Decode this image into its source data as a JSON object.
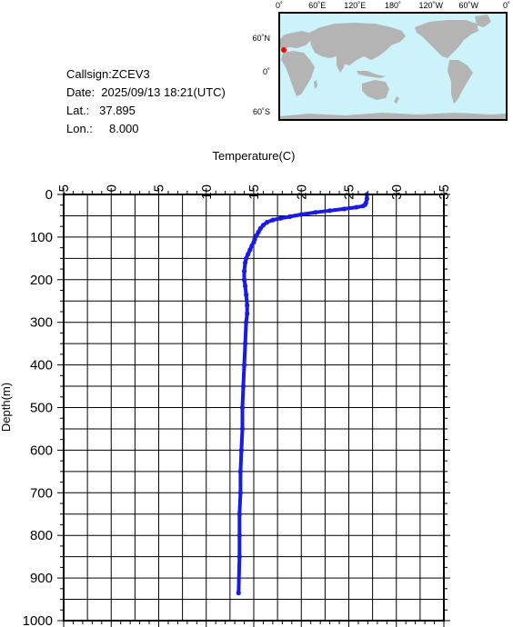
{
  "info": {
    "callsign": "Callsign:ZCEV3",
    "date": "Date:  2025/09/13 18:21(UTC)",
    "lat": "Lat.:   37.895",
    "lon": "Lon.:     8.000"
  },
  "map": {
    "lon_labels": [
      "0˚",
      "60˚E",
      "120˚E",
      "180˚",
      "120˚W",
      "60˚W",
      "0˚"
    ],
    "lat_labels": [
      "60˚N",
      "0˚",
      "60˚S"
    ],
    "ocean_color": "#cdf3fa",
    "land_color": "#b4b4b4",
    "marker_color": "#ff0000"
  },
  "chart_data": {
    "type": "line",
    "xlabel": "Temperature(C)",
    "ylabel": "Depth(m)",
    "xlim": [
      -5,
      35
    ],
    "ylim": [
      0,
      1000
    ],
    "y_inverted": true,
    "x_axis_position": "top",
    "x_ticks": [
      "-5",
      "0",
      "5",
      "10",
      "15",
      "20",
      "25",
      "30",
      "35"
    ],
    "y_ticks": [
      "0",
      "100",
      "200",
      "300",
      "400",
      "500",
      "600",
      "700",
      "800",
      "900",
      "1000"
    ],
    "grid": true,
    "line_color": "#1a1ae6",
    "series": [
      {
        "temperature": [
          26.9,
          26.9,
          26.8,
          26.7,
          26.5,
          25.8,
          24.5,
          23.0,
          21.5,
          20.0,
          18.8,
          17.8,
          17.0,
          16.4,
          16.0,
          15.7,
          15.5,
          15.3,
          15.1,
          15.0,
          14.8,
          14.6,
          14.4,
          14.2,
          14.1,
          14.0,
          14.0,
          14.1,
          14.2,
          14.3,
          14.3,
          14.2,
          14.1,
          14.0,
          13.9,
          13.8,
          13.8,
          13.7,
          13.6,
          13.6,
          13.5,
          13.5,
          13.5,
          13.4
        ],
        "depth": [
          0,
          10,
          20,
          24,
          27,
          30,
          34,
          38,
          42,
          47,
          52,
          56,
          60,
          65,
          72,
          80,
          88,
          96,
          105,
          112,
          120,
          130,
          140,
          150,
          160,
          180,
          200,
          215,
          235,
          260,
          280,
          300,
          350,
          400,
          450,
          500,
          550,
          600,
          650,
          700,
          750,
          800,
          850,
          935
        ]
      }
    ]
  }
}
